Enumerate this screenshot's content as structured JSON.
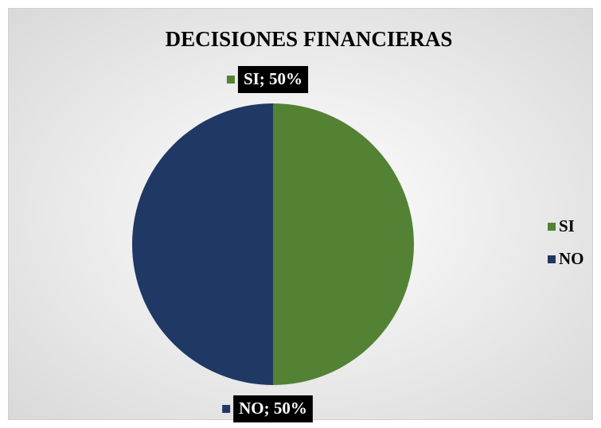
{
  "chart_data": {
    "type": "pie",
    "title": "DECISIONES FINANCIERAS",
    "categories": [
      "SI",
      "NO"
    ],
    "values": [
      50,
      50
    ],
    "value_labels": [
      "SI; 50%",
      "NO; 50%"
    ],
    "colors": [
      "#548235",
      "#1f3864"
    ],
    "legend": "right"
  }
}
